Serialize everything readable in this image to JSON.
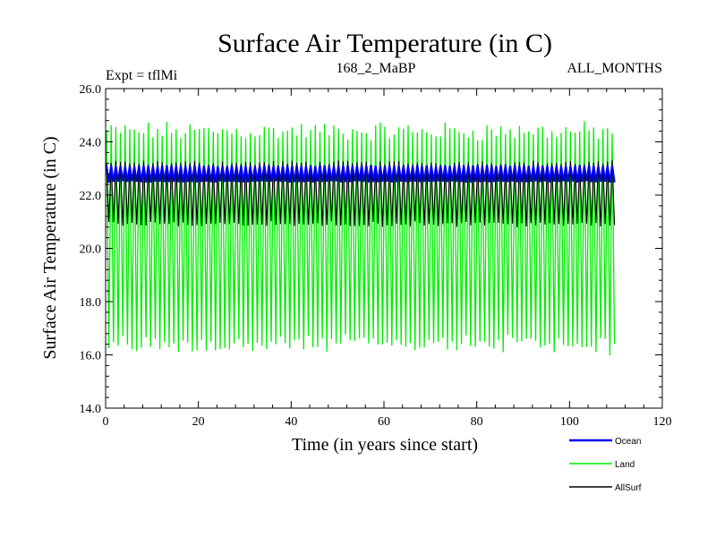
{
  "chart_data": {
    "type": "line",
    "title": "Surface Air Temperature (in C)",
    "subtitle_left": "Expt = tflMi",
    "subtitle_center": "168_2_MaBP",
    "subtitle_right": "ALL_MONTHS",
    "xlabel": "Time (in years since start)",
    "ylabel": "Surface Air Temperature (in C)",
    "xlim": [
      0,
      120
    ],
    "ylim": [
      14.0,
      26.0
    ],
    "xticks": [
      0,
      20,
      40,
      60,
      80,
      100,
      120
    ],
    "yticks": [
      14.0,
      16.0,
      18.0,
      20.0,
      22.0,
      24.0,
      26.0
    ],
    "xtick_labels": [
      "0",
      "20",
      "40",
      "60",
      "80",
      "100",
      "120"
    ],
    "ytick_labels": [
      "14.0",
      "16.0",
      "18.0",
      "20.0",
      "22.0",
      "24.0",
      "26.0"
    ],
    "x_range_years": [
      0,
      110
    ],
    "legend_position": "bottom-right",
    "series": [
      {
        "name": "Land",
        "color": "#00ee00",
        "annual_mean": 20.4,
        "seasonal_max_approx": 24.5,
        "seasonal_min_approx": 16.5,
        "absolute_max": 25.1,
        "absolute_min": 15.6
      },
      {
        "name": "AllSurf",
        "color": "#000000",
        "annual_mean": 22.05,
        "seasonal_max_approx": 23.2,
        "seasonal_min_approx": 20.9,
        "absolute_max": 23.5,
        "absolute_min": 20.6
      },
      {
        "name": "Ocean",
        "color": "#0000ee",
        "annual_mean": 22.8,
        "seasonal_max_approx": 23.1,
        "seasonal_min_approx": 22.5,
        "absolute_max": 23.5,
        "absolute_min": 22.3
      }
    ],
    "legend": [
      {
        "label": "Ocean",
        "color": "#0000ee"
      },
      {
        "label": "Land",
        "color": "#00ee00"
      },
      {
        "label": "AllSurf",
        "color": "#000000"
      }
    ]
  }
}
